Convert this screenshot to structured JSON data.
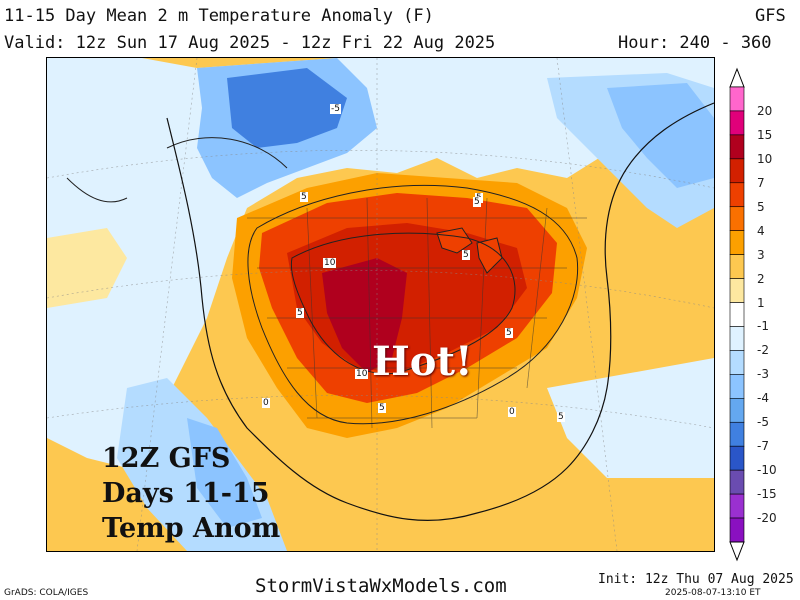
{
  "header": {
    "title": "11-15 Day Mean 2 m Temperature Anomaly (F)",
    "model": "GFS",
    "valid": "Valid: 12z Sun 17 Aug 2025 - 12z Fri 22 Aug 2025",
    "hour": "Hour: 240 - 360"
  },
  "map": {
    "hot_label": "Hot!",
    "overlay_lines": [
      "12Z GFS",
      "Days 11-15",
      "Temp Anom"
    ],
    "contour_labels": [
      "-5",
      "5",
      "5",
      "5",
      "10",
      "5",
      "5",
      "5",
      "10",
      "5",
      "0",
      "0",
      "5"
    ]
  },
  "colorbar": {
    "levels": [
      "20",
      "15",
      "10",
      "7",
      "5",
      "4",
      "3",
      "2",
      "1",
      "-1",
      "-2",
      "-3",
      "-4",
      "-5",
      "-7",
      "-10",
      "-15",
      "-20"
    ],
    "colors": [
      "#ff66cc",
      "#e0007a",
      "#b0001e",
      "#d22000",
      "#ee4000",
      "#fa7000",
      "#fca000",
      "#fdc850",
      "#fde8a0",
      "#ffffff",
      "#dff2ff",
      "#b4dcff",
      "#8cc4ff",
      "#64a8f0",
      "#4080e0",
      "#2a56c8",
      "#6a4cb0",
      "#9a30d0",
      "#8a10c0"
    ],
    "arrow_color": "#ffffff"
  },
  "footer": {
    "credit": "GrADS: COLA/IGES",
    "site": "StormVistaWxModels.com",
    "init": "Init: 12z Thu 07 Aug 2025",
    "timestamp": "2025-08-07-13:10 ET"
  }
}
